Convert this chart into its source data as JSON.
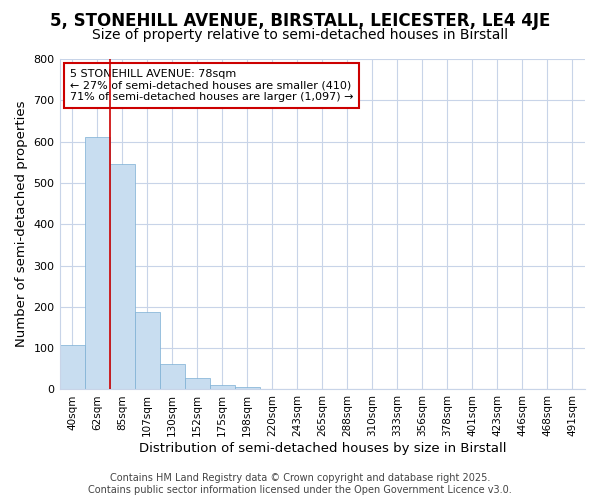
{
  "title": "5, STONEHILL AVENUE, BIRSTALL, LEICESTER, LE4 4JE",
  "subtitle": "Size of property relative to semi-detached houses in Birstall",
  "xlabel": "Distribution of semi-detached houses by size in Birstall",
  "ylabel": "Number of semi-detached properties",
  "bin_labels": [
    "40sqm",
    "62sqm",
    "85sqm",
    "107sqm",
    "130sqm",
    "152sqm",
    "175sqm",
    "198sqm",
    "220sqm",
    "243sqm",
    "265sqm",
    "288sqm",
    "310sqm",
    "333sqm",
    "356sqm",
    "378sqm",
    "401sqm",
    "423sqm",
    "446sqm",
    "468sqm",
    "491sqm"
  ],
  "bar_values": [
    107,
    611,
    547,
    188,
    62,
    27,
    10,
    5,
    0,
    0,
    0,
    0,
    0,
    0,
    0,
    0,
    0,
    0,
    0,
    0,
    0
  ],
  "bar_color": "#c8ddf0",
  "bar_edge_color": "#7bafd4",
  "background_color": "#ffffff",
  "plot_bg_color": "#ffffff",
  "grid_color": "#c8d4e8",
  "vline_x_index": 1.5,
  "vline_color": "#cc0000",
  "annotation_text": "5 STONEHILL AVENUE: 78sqm\n← 27% of semi-detached houses are smaller (410)\n71% of semi-detached houses are larger (1,097) →",
  "annotation_box_color": "#ffffff",
  "annotation_box_edge": "#cc0000",
  "footer_line1": "Contains HM Land Registry data © Crown copyright and database right 2025.",
  "footer_line2": "Contains public sector information licensed under the Open Government Licence v3.0.",
  "ylim": [
    0,
    800
  ],
  "title_fontsize": 12,
  "subtitle_fontsize": 10,
  "axis_label_fontsize": 9.5,
  "tick_fontsize": 7.5,
  "annotation_fontsize": 8,
  "footer_fontsize": 7
}
